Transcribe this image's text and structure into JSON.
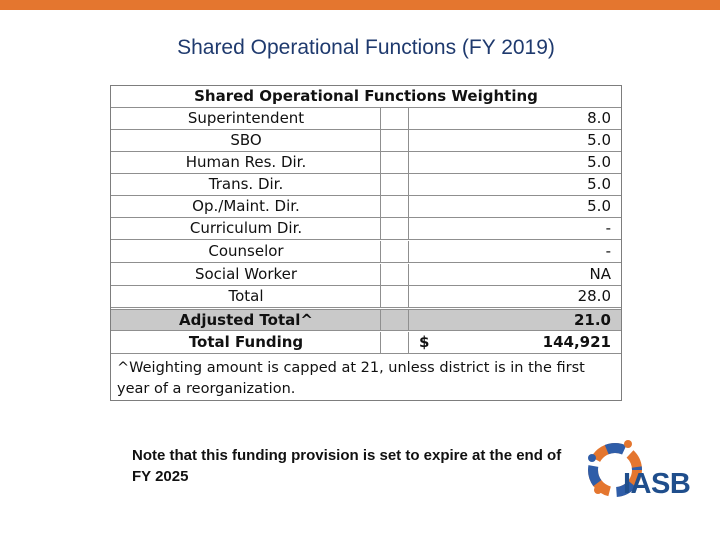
{
  "colors": {
    "top_bar": "#e4762f",
    "title": "#1f3a6e",
    "logo_blue": "#2f5da8",
    "logo_orange": "#e4762f",
    "logo_text": "#1f4e8c"
  },
  "slide": {
    "title": "Shared Operational Functions (FY 2019)",
    "note": "Note that this funding provision is set to expire at the end of FY 2025"
  },
  "table": {
    "header": "Shared Operational Functions Weighting",
    "rows": [
      {
        "label": "Superintendent",
        "value": "8.0"
      },
      {
        "label": "SBO",
        "value": "5.0"
      },
      {
        "label": "Human Res. Dir.",
        "value": "5.0"
      },
      {
        "label": "Trans. Dir.",
        "value": "5.0"
      },
      {
        "label": "Op./Maint. Dir.",
        "value": "5.0"
      },
      {
        "label": "Curriculum Dir.",
        "value": "-"
      },
      {
        "label": "Counselor",
        "value": "-"
      },
      {
        "label": "Social Worker",
        "value": "NA"
      },
      {
        "label": "Total",
        "value": "28.0"
      }
    ],
    "adjusted": {
      "label": "Adjusted Total^",
      "value": "21.0"
    },
    "funding": {
      "label": "Total Funding",
      "currency": "$",
      "value": "144,921"
    },
    "footnote": "^Weighting amount is capped at 21, unless district is in the first year of a reorganization."
  },
  "logo": {
    "text": "IASB",
    "icon": "puzzle-ring-icon"
  }
}
